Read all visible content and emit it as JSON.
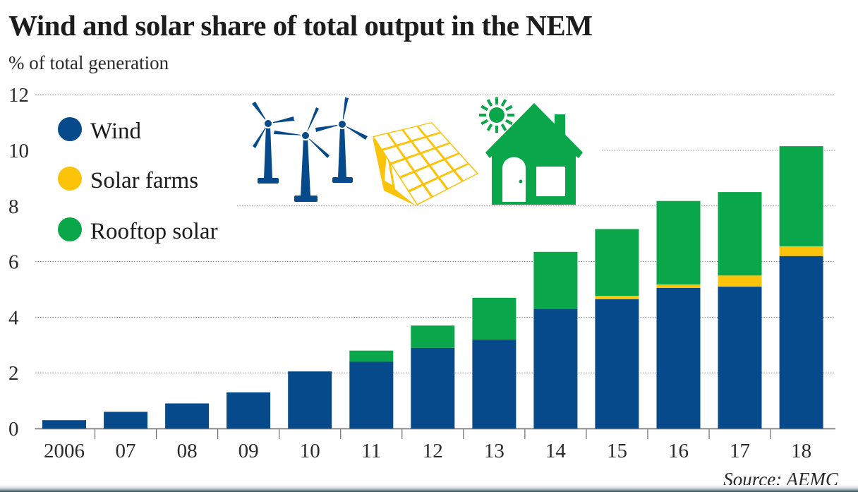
{
  "chart_data": {
    "type": "bar",
    "stacked": true,
    "title": "Wind and solar share of total output in the NEM",
    "ylabel": "% of total generation",
    "xlabel": "",
    "categories": [
      "2006",
      "07",
      "08",
      "09",
      "10",
      "11",
      "12",
      "13",
      "14",
      "15",
      "16",
      "17",
      "18"
    ],
    "series": [
      {
        "name": "Wind",
        "color": "#064a8c",
        "values": [
          0.3,
          0.6,
          0.9,
          1.3,
          2.05,
          2.4,
          2.9,
          3.2,
          4.3,
          4.65,
          5.05,
          5.1,
          6.2
        ]
      },
      {
        "name": "Solar farms",
        "color": "#fcc30b",
        "values": [
          0,
          0,
          0,
          0,
          0,
          0,
          0,
          0,
          0,
          0.12,
          0.13,
          0.4,
          0.35
        ]
      },
      {
        "name": "Rooftop solar",
        "color": "#0aa64a",
        "values": [
          0,
          0,
          0,
          0,
          0,
          0.4,
          0.8,
          1.5,
          2.05,
          2.4,
          3.0,
          3.0,
          3.6
        ]
      }
    ],
    "ylim": [
      0,
      12
    ],
    "yticks": [
      0,
      2,
      4,
      6,
      8,
      10,
      12
    ],
    "ytick_labels": [
      "0",
      "2",
      "4",
      "6",
      "8",
      "10",
      "12"
    ],
    "grid": "horizontal dotted",
    "legend": {
      "placement": "top-left",
      "entries": [
        "Wind",
        "Solar farms",
        "Rooftop solar"
      ]
    },
    "annotations": [
      "Source: AEMC"
    ],
    "decorations": [
      "wind-turbines-icon",
      "solar-panel-icon",
      "house-with-sun-icon"
    ]
  },
  "colors": {
    "wind": "#064a8c",
    "solar_farms": "#fcc30b",
    "rooftop_solar": "#0aa64a",
    "text": "#1c1c1c",
    "grid": "#8a8a8a"
  },
  "source": "Source: AEMC"
}
